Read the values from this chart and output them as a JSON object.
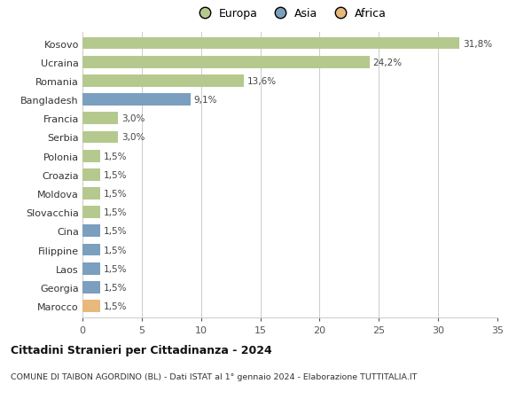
{
  "countries": [
    "Kosovo",
    "Ucraina",
    "Romania",
    "Bangladesh",
    "Francia",
    "Serbia",
    "Polonia",
    "Croazia",
    "Moldova",
    "Slovacchia",
    "Cina",
    "Filippine",
    "Laos",
    "Georgia",
    "Marocco"
  ],
  "values": [
    31.8,
    24.2,
    13.6,
    9.1,
    3.0,
    3.0,
    1.5,
    1.5,
    1.5,
    1.5,
    1.5,
    1.5,
    1.5,
    1.5,
    1.5
  ],
  "labels": [
    "31,8%",
    "24,2%",
    "13,6%",
    "9,1%",
    "3,0%",
    "3,0%",
    "1,5%",
    "1,5%",
    "1,5%",
    "1,5%",
    "1,5%",
    "1,5%",
    "1,5%",
    "1,5%",
    "1,5%"
  ],
  "continents": [
    "Europa",
    "Europa",
    "Europa",
    "Asia",
    "Europa",
    "Europa",
    "Europa",
    "Europa",
    "Europa",
    "Europa",
    "Asia",
    "Asia",
    "Asia",
    "Asia",
    "Africa"
  ],
  "colors": {
    "Europa": "#b5c98e",
    "Asia": "#7b9fbe",
    "Africa": "#e8b87d"
  },
  "legend_labels": [
    "Europa",
    "Asia",
    "Africa"
  ],
  "legend_colors": [
    "#b5c98e",
    "#7b9fbe",
    "#e8b87d"
  ],
  "title": "Cittadini Stranieri per Cittadinanza - 2024",
  "subtitle": "COMUNE DI TAIBON AGORDINO (BL) - Dati ISTAT al 1° gennaio 2024 - Elaborazione TUTTITALIA.IT",
  "xlim": [
    0,
    35
  ],
  "xticks": [
    0,
    5,
    10,
    15,
    20,
    25,
    30,
    35
  ],
  "bg_color": "#ffffff",
  "grid_color": "#cccccc",
  "bar_height": 0.65
}
